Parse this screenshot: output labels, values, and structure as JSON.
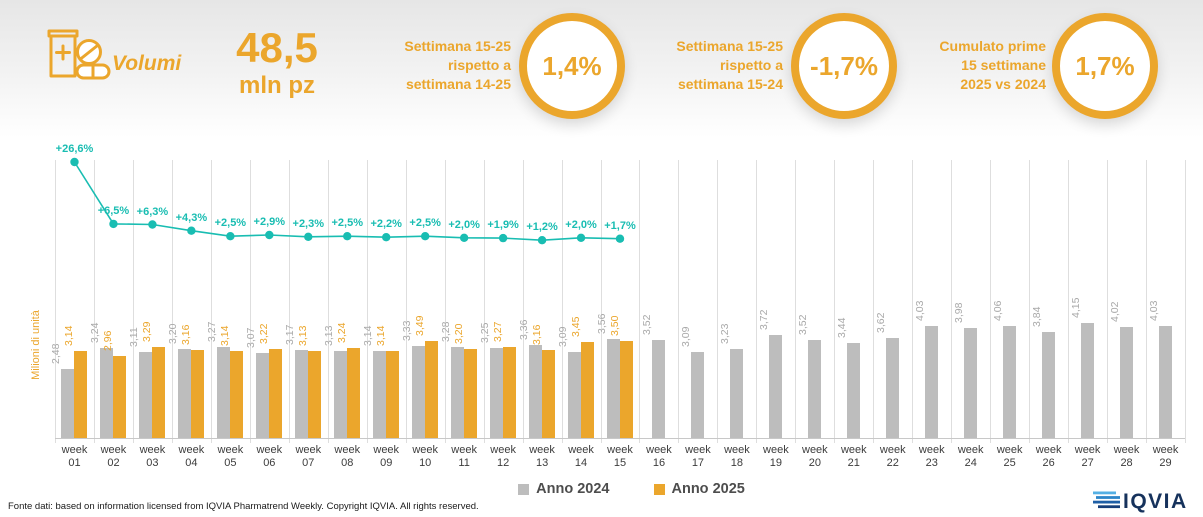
{
  "colors": {
    "gold": "#EBA62C",
    "gray": "#BDBDBD",
    "teal": "#19BDB2",
    "navy": "#16325C"
  },
  "header": {
    "title": "Volumi",
    "total_value": "48,5",
    "total_unit": "mln pz",
    "kpis": [
      {
        "line1": "Settimana 15-25",
        "line2": "rispetto a",
        "line3": "settimana 14-25",
        "value": "1,4%"
      },
      {
        "line1": "Settimana 15-25",
        "line2": "rispetto a",
        "line3": "settimana 15-24",
        "value": "-1,7%"
      },
      {
        "line1": "Cumulato prime",
        "line2": "15 settimane",
        "line3": "2025 vs 2024",
        "value": "1,7%"
      }
    ]
  },
  "chart_data": {
    "type": "bar",
    "ylabel": "Milioni di unità",
    "grid": "vertical",
    "legend_position": "bottom",
    "categories": [
      "week 01",
      "week 02",
      "week 03",
      "week 04",
      "week 05",
      "week 06",
      "week 07",
      "week 08",
      "week 09",
      "week 10",
      "week 11",
      "week 12",
      "week 13",
      "week 14",
      "week 15",
      "week 16",
      "week 17",
      "week 18",
      "week 19",
      "week 20",
      "week 21",
      "week 22",
      "week 23",
      "week 24",
      "week 25",
      "week 26",
      "week 27",
      "week 28",
      "week 29"
    ],
    "series": [
      {
        "name": "Anno 2024",
        "color": "#BDBDBD",
        "values": [
          2.48,
          3.24,
          3.11,
          3.2,
          3.27,
          3.07,
          3.17,
          3.13,
          3.14,
          3.33,
          3.28,
          3.25,
          3.36,
          3.09,
          3.56,
          3.52,
          3.09,
          3.23,
          3.72,
          3.52,
          3.44,
          3.62,
          4.03,
          3.98,
          4.06,
          3.84,
          4.15,
          4.02,
          4.03
        ]
      },
      {
        "name": "Anno 2025",
        "color": "#EBA62C",
        "values": [
          3.14,
          2.96,
          3.29,
          3.16,
          3.14,
          3.22,
          3.13,
          3.24,
          3.14,
          3.49,
          3.2,
          3.27,
          3.16,
          3.45,
          3.5
        ]
      }
    ],
    "line_series": {
      "color": "#19BDB2",
      "labels": [
        "+26,6%",
        "+6,5%",
        "+6,3%",
        "+4,3%",
        "+2,5%",
        "+2,9%",
        "+2,3%",
        "+2,5%",
        "+2,2%",
        "+2,5%",
        "+2,0%",
        "+1,9%",
        "+1,2%",
        "+2,0%",
        "+1,7%"
      ],
      "values": [
        26.6,
        6.5,
        6.3,
        4.3,
        2.5,
        2.9,
        2.3,
        2.5,
        2.2,
        2.5,
        2.0,
        1.9,
        1.2,
        2.0,
        1.7
      ]
    }
  },
  "legend": {
    "items": [
      {
        "label": "Anno 2024",
        "color": "#BDBDBD"
      },
      {
        "label": "Anno 2025",
        "color": "#EBA62C"
      }
    ]
  },
  "footer": {
    "source": "Fonte dati: based on information licensed from IQVIA Pharmatrend Weekly. Copyright IQVIA. All rights reserved.",
    "logo_text": "IQVIA"
  }
}
